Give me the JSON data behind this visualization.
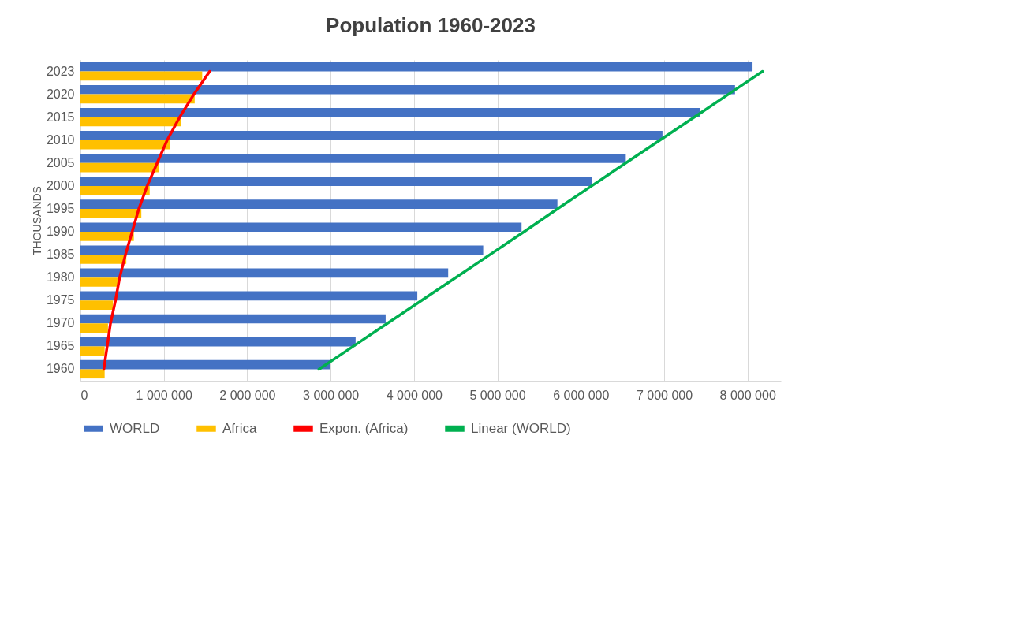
{
  "chart_data": {
    "type": "bar",
    "orientation": "horizontal",
    "title": "Population 1960-2023",
    "ylabel": "THOUSANDS",
    "categories": [
      "2023",
      "2020",
      "2015",
      "2010",
      "2005",
      "2000",
      "1995",
      "1990",
      "1985",
      "1980",
      "1975",
      "1970",
      "1965",
      "1960"
    ],
    "xlim": [
      0,
      8400000
    ],
    "xticks": [
      0,
      {
        "value": 1000000,
        "label": "1 000 000"
      },
      {
        "value": 2000000,
        "label": "2 000 000"
      },
      {
        "value": 3000000,
        "label": "3 000 000"
      },
      {
        "value": 4000000,
        "label": "4 000 000"
      },
      {
        "value": 5000000,
        "label": "5 000 000"
      },
      {
        "value": 6000000,
        "label": "6 000 000"
      },
      {
        "value": 7000000,
        "label": "7 000 000"
      },
      {
        "value": 8000000,
        "label": "8 000 000"
      }
    ],
    "grid": "x",
    "legend": "bottom",
    "series": [
      {
        "name": "WORLD",
        "color": "#4472c4",
        "values": [
          8060000,
          7850000,
          7430000,
          6980000,
          6540000,
          6130000,
          5720000,
          5290000,
          4830000,
          4410000,
          4040000,
          3660000,
          3300000,
          2990000
        ]
      },
      {
        "name": "Africa",
        "color": "#ffc000",
        "values": [
          1460000,
          1370000,
          1210000,
          1070000,
          940000,
          830000,
          730000,
          640000,
          550000,
          460000,
          390000,
          330000,
          290000,
          290000
        ]
      },
      {
        "name": "Expon. (Africa)",
        "type": "line",
        "color": "#ff0000",
        "values": [
          1550000,
          1360000,
          1190000,
          1040000,
          920000,
          800000,
          700000,
          620000,
          540000,
          470000,
          420000,
          360000,
          320000,
          280000
        ]
      },
      {
        "name": "Linear (WORLD)",
        "type": "line",
        "color": "#00b050",
        "values": [
          8180000,
          7770000,
          7360000,
          6950000,
          6540000,
          6130000,
          5720000,
          5320000,
          4910000,
          4500000,
          4090000,
          3680000,
          3270000,
          2860000
        ]
      }
    ]
  }
}
